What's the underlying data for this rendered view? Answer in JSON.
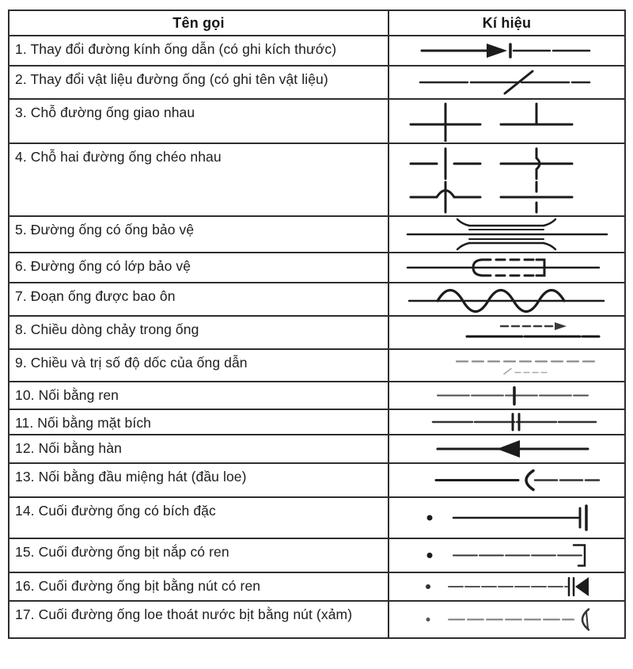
{
  "table": {
    "headers": {
      "name": "Tên gọi",
      "symbol": "Kí hiệu"
    },
    "rows": [
      {
        "label": "1. Thay đổi đường kính ống dẫn (có ghi kích thước)",
        "symbol": "diameter-change"
      },
      {
        "label": "2. Thay đổi vật liệu đường ống (có ghi tên vật liệu)",
        "symbol": "material-change"
      },
      {
        "label": "3. Chỗ đường ống giao nhau",
        "symbol": "pipes-crossing"
      },
      {
        "label": "4. Chỗ hai đường ống chéo nhau",
        "symbol": "pipes-crossing-no-connection"
      },
      {
        "label": "5. Đường ống có ống bảo vệ",
        "symbol": "pipe-with-protective-pipe"
      },
      {
        "label": "6. Đường ống có lớp bảo vệ",
        "symbol": "pipe-with-protective-layer"
      },
      {
        "label": "7. Đoạn ống được bao ôn",
        "symbol": "insulated-pipe"
      },
      {
        "label": "8. Chiều dòng chảy trong ống",
        "symbol": "flow-direction"
      },
      {
        "label": "9. Chiều và trị số độ dốc của ống dẫn",
        "symbol": "slope-direction-value"
      },
      {
        "label": "10. Nối bằng ren",
        "symbol": "threaded-joint"
      },
      {
        "label": "11. Nối bằng mặt bích",
        "symbol": "flange-joint"
      },
      {
        "label": "12. Nối bằng hàn",
        "symbol": "welded-joint"
      },
      {
        "label": "13. Nối bằng đầu miệng hát (đầu loe)",
        "symbol": "bell-mouth-joint"
      },
      {
        "label": "14. Cuối đường ống có bích đặc",
        "symbol": "blind-flange-end"
      },
      {
        "label": "15. Cuối đường ống bịt nắp có ren",
        "symbol": "threaded-cap-end"
      },
      {
        "label": "16. Cuối đường ống bịt bằng nút có ren",
        "symbol": "threaded-plug-end"
      },
      {
        "label": "17. Cuối đường ống loe thoát nước bịt bằng nút (xảm)",
        "symbol": "caulked-plug-end"
      }
    ]
  }
}
